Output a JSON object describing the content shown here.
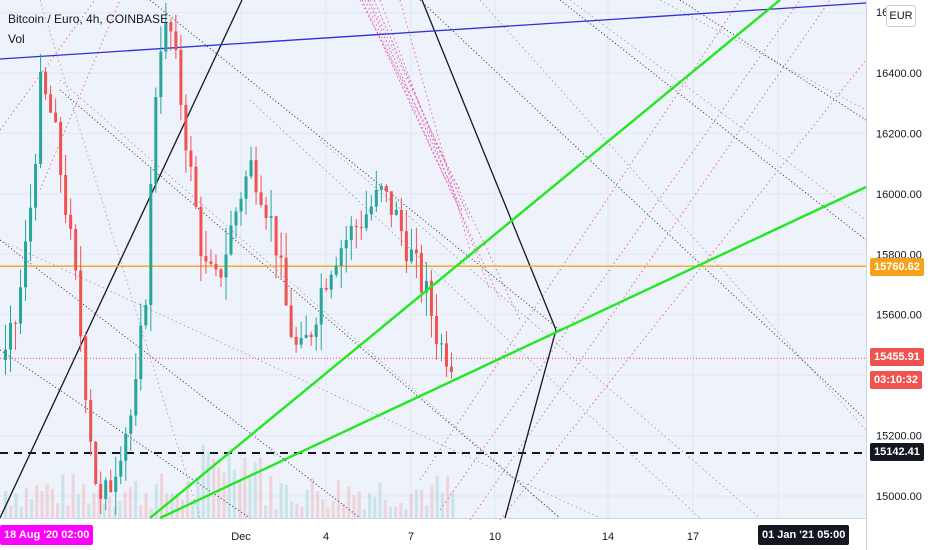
{
  "legend": {
    "title": "Bitcoin / Euro, 4h, COINBASE",
    "indicator": "Vol"
  },
  "currency_button": "EUR",
  "price_axis": {
    "ticks": [
      "16400.00",
      "16200.00",
      "16000.00",
      "15800.00",
      "15600.00",
      "15200.00",
      "15000.00"
    ],
    "top_partial": "16"
  },
  "price_badges": {
    "horizontal_level": "15760.62",
    "last_price": "15455.91",
    "countdown": "03:10:32",
    "support_level": "15142.41"
  },
  "time_axis": {
    "ticks": [
      "Dec",
      "4",
      "7",
      "10",
      "14",
      "17"
    ],
    "crosshair_start": "18 Aug '20   02:00",
    "crosshair_end": "01 Jan '21   05:00"
  },
  "colors": {
    "background": "#eef2fb",
    "up_candle": "#26a69a",
    "down_candle": "#ef5350",
    "green_trendline": "#22e822",
    "blue_trendline": "#2b2fd6",
    "orange_level": "#f7a21b",
    "pink_start_label": "#ff00ff"
  }
}
